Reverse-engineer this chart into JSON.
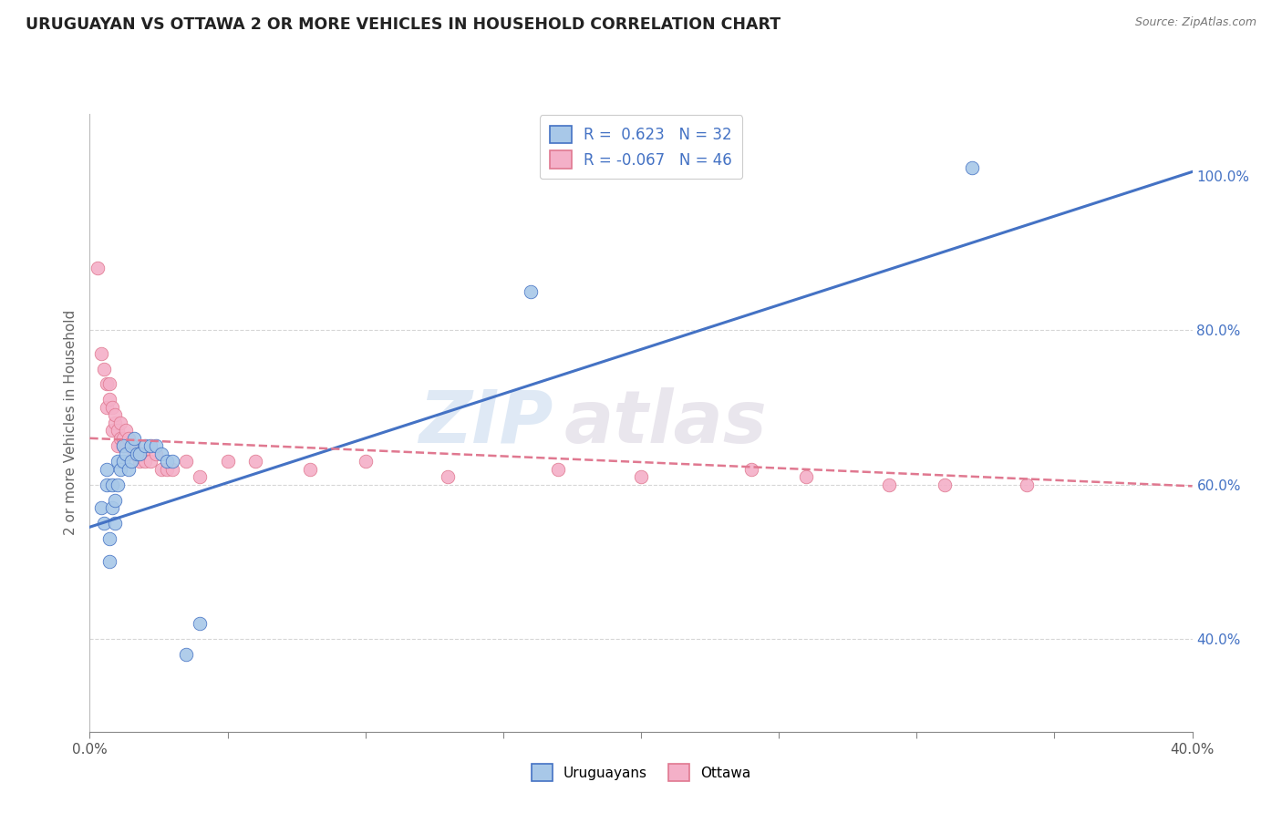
{
  "title": "URUGUAYAN VS OTTAWA 2 OR MORE VEHICLES IN HOUSEHOLD CORRELATION CHART",
  "source": "Source: ZipAtlas.com",
  "ylabel": "2 or more Vehicles in Household",
  "watermark": "ZIPatlas",
  "xlim": [
    0.0,
    0.4
  ],
  "ylim": [
    0.28,
    1.08
  ],
  "yticks_right": [
    0.4,
    0.6,
    0.8,
    1.0
  ],
  "yticklabels_right": [
    "40.0%",
    "60.0%",
    "80.0%",
    "100.0%"
  ],
  "legend_labels": [
    "Uruguayans",
    "Ottawa"
  ],
  "color_uruguayan": "#a8c8e8",
  "color_ottawa": "#f4b0c8",
  "line_color_uruguayan": "#4472c4",
  "line_color_ottawa": "#e07890",
  "background_color": "#ffffff",
  "grid_color": "#cccccc",
  "uruguayan_x": [
    0.004,
    0.005,
    0.006,
    0.006,
    0.007,
    0.007,
    0.008,
    0.008,
    0.009,
    0.009,
    0.01,
    0.01,
    0.011,
    0.012,
    0.012,
    0.013,
    0.014,
    0.015,
    0.015,
    0.016,
    0.017,
    0.018,
    0.02,
    0.022,
    0.024,
    0.026,
    0.028,
    0.03,
    0.035,
    0.04,
    0.16,
    0.32
  ],
  "uruguayan_y": [
    0.57,
    0.55,
    0.6,
    0.62,
    0.5,
    0.53,
    0.57,
    0.6,
    0.55,
    0.58,
    0.6,
    0.63,
    0.62,
    0.63,
    0.65,
    0.64,
    0.62,
    0.63,
    0.65,
    0.66,
    0.64,
    0.64,
    0.65,
    0.65,
    0.65,
    0.64,
    0.63,
    0.63,
    0.38,
    0.42,
    0.85,
    1.01
  ],
  "ottawa_x": [
    0.003,
    0.004,
    0.005,
    0.006,
    0.006,
    0.007,
    0.007,
    0.008,
    0.008,
    0.009,
    0.009,
    0.01,
    0.01,
    0.011,
    0.011,
    0.012,
    0.012,
    0.013,
    0.013,
    0.014,
    0.015,
    0.016,
    0.016,
    0.017,
    0.018,
    0.019,
    0.02,
    0.022,
    0.024,
    0.026,
    0.028,
    0.03,
    0.035,
    0.04,
    0.05,
    0.06,
    0.08,
    0.1,
    0.13,
    0.17,
    0.2,
    0.24,
    0.26,
    0.29,
    0.31,
    0.34
  ],
  "ottawa_y": [
    0.88,
    0.77,
    0.75,
    0.73,
    0.7,
    0.73,
    0.71,
    0.7,
    0.67,
    0.68,
    0.69,
    0.67,
    0.65,
    0.66,
    0.68,
    0.66,
    0.65,
    0.65,
    0.67,
    0.66,
    0.65,
    0.65,
    0.64,
    0.64,
    0.63,
    0.64,
    0.63,
    0.63,
    0.64,
    0.62,
    0.62,
    0.62,
    0.63,
    0.61,
    0.63,
    0.63,
    0.62,
    0.63,
    0.61,
    0.62,
    0.61,
    0.62,
    0.61,
    0.6,
    0.6,
    0.6
  ],
  "uruguayan_line_x": [
    0.0,
    0.4
  ],
  "uruguayan_line_y": [
    0.545,
    1.005
  ],
  "ottawa_line_x": [
    0.0,
    0.4
  ],
  "ottawa_line_y": [
    0.66,
    0.598
  ]
}
